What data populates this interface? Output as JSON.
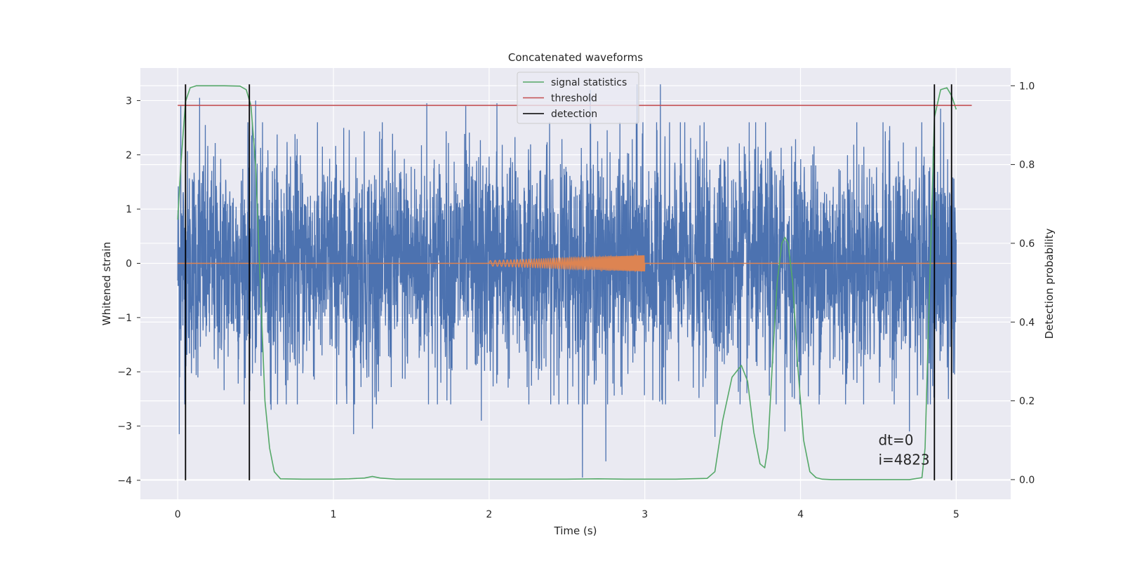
{
  "chart_data": {
    "type": "line",
    "title": "Concatenated waveforms",
    "xlabel": "Time (s)",
    "ylabel": "Whitened strain",
    "y2label": "Detection probability",
    "xlim": [
      -0.24,
      5.35
    ],
    "ylim": [
      -4.35,
      3.6
    ],
    "y2lim": [
      -0.05,
      1.045
    ],
    "xticks": [
      0,
      1,
      2,
      3,
      4,
      5
    ],
    "yticks": [
      -4,
      -3,
      -2,
      -1,
      0,
      1,
      2,
      3
    ],
    "y2ticks": [
      0.0,
      0.2,
      0.4,
      0.6,
      0.8,
      1.0
    ],
    "grid": true,
    "legend_position": "top-center",
    "colors": {
      "strain": "#4c72b0",
      "injected": "#dd8452",
      "statistics": "#55a868",
      "threshold": "#c44e52",
      "detection": "#000000",
      "background": "#eaeaf2",
      "grid": "#ffffff"
    },
    "series": [
      {
        "key": "strain",
        "description_hidden": true,
        "x_range": [
          0,
          5
        ],
        "samples": 4096,
        "typical_abs": 1.2,
        "peaks": [
          [
            0.01,
            -3.15
          ],
          [
            0.02,
            2.9
          ],
          [
            0.14,
            3.05
          ],
          [
            0.45,
            2.6
          ],
          [
            0.5,
            3.0
          ],
          [
            0.6,
            -2.7
          ],
          [
            1.13,
            -3.15
          ],
          [
            1.25,
            -3.05
          ],
          [
            1.6,
            2.95
          ],
          [
            1.85,
            2.9
          ],
          [
            1.95,
            -2.9
          ],
          [
            2.05,
            2.95
          ],
          [
            2.6,
            -3.95
          ],
          [
            2.65,
            3.2
          ],
          [
            2.75,
            -3.65
          ],
          [
            2.95,
            3.3
          ],
          [
            3.1,
            3.3
          ],
          [
            3.45,
            -3.2
          ],
          [
            3.9,
            -3.1
          ],
          [
            4.7,
            3.2
          ],
          [
            4.7,
            -3.1
          ],
          [
            4.9,
            2.85
          ],
          [
            4.95,
            -2.5
          ]
        ]
      },
      {
        "key": "injected",
        "x_range": [
          2.0,
          3.0
        ],
        "amplitude_start": 0.05,
        "amplitude_end": 0.15
      },
      {
        "key": "statistics",
        "name": "signal statistics",
        "axis": "right",
        "x": [
          0.0,
          0.02,
          0.05,
          0.08,
          0.12,
          0.2,
          0.3,
          0.4,
          0.44,
          0.47,
          0.5,
          0.53,
          0.56,
          0.59,
          0.62,
          0.66,
          0.8,
          1.0,
          1.1,
          1.2,
          1.25,
          1.3,
          1.4,
          1.6,
          2.0,
          2.5,
          2.7,
          2.9,
          3.2,
          3.4,
          3.45,
          3.5,
          3.56,
          3.62,
          3.66,
          3.7,
          3.74,
          3.77,
          3.79,
          3.82,
          3.85,
          3.88,
          3.9,
          3.92,
          3.95,
          3.98,
          4.02,
          4.06,
          4.1,
          4.14,
          4.2,
          4.5,
          4.7,
          4.78,
          4.8,
          4.83,
          4.86,
          4.9,
          4.94,
          4.97,
          5.0
        ],
        "y": [
          0.66,
          0.8,
          0.96,
          0.995,
          1.0,
          1.0,
          1.0,
          0.999,
          0.99,
          0.95,
          0.8,
          0.5,
          0.2,
          0.08,
          0.02,
          0.002,
          0.001,
          0.001,
          0.002,
          0.004,
          0.008,
          0.004,
          0.001,
          0.001,
          0.001,
          0.001,
          0.002,
          0.001,
          0.001,
          0.003,
          0.02,
          0.15,
          0.26,
          0.29,
          0.25,
          0.12,
          0.04,
          0.03,
          0.08,
          0.3,
          0.5,
          0.6,
          0.615,
          0.6,
          0.5,
          0.3,
          0.1,
          0.02,
          0.005,
          0.001,
          0.0,
          0.0,
          0.0,
          0.005,
          0.08,
          0.5,
          0.92,
          0.99,
          0.995,
          0.975,
          0.94
        ]
      },
      {
        "key": "threshold",
        "name": "threshold",
        "axis": "right",
        "x": [
          0.0,
          5.1
        ],
        "y": [
          0.95,
          0.95
        ]
      },
      {
        "key": "detection",
        "name": "detection",
        "x": [
          0.05,
          0.46,
          4.86,
          4.97
        ],
        "ylim": [
          -4.0,
          3.3
        ]
      }
    ],
    "annotations": [
      "dt=0",
      "i=4823"
    ],
    "annotation_position": [
      4.5,
      -3.35
    ]
  }
}
